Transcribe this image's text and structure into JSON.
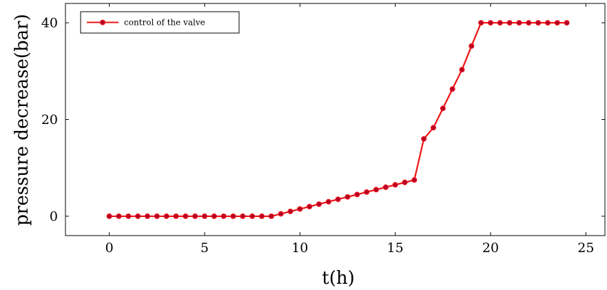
{
  "chart_data": {
    "type": "line",
    "title": "",
    "xlabel": "t(h)",
    "ylabel": "pressure decrease(bar)",
    "xlim": [
      -2.3,
      26.0
    ],
    "ylim": [
      -4.0,
      44.0
    ],
    "x_ticks": [
      0,
      5,
      10,
      15,
      20,
      25
    ],
    "y_ticks": [
      0,
      20,
      40
    ],
    "grid": false,
    "legend_position": "top-left",
    "colors": {
      "line": "#ee1111",
      "marker": "#b3002e"
    },
    "series": [
      {
        "name": "control of the valve",
        "x": [
          0,
          0.5,
          1,
          1.5,
          2,
          2.5,
          3,
          3.5,
          4,
          4.5,
          5,
          5.5,
          6,
          6.5,
          7,
          7.5,
          8,
          8.5,
          9,
          9.5,
          10,
          10.5,
          11,
          11.5,
          12,
          12.5,
          13,
          13.5,
          14,
          14.5,
          15,
          15.5,
          16,
          16.5,
          17,
          17.5,
          18,
          18.5,
          19,
          19.5,
          20,
          20.5,
          21,
          21.5,
          22,
          22.5,
          23,
          23.5,
          24
        ],
        "y": [
          0,
          0,
          0,
          0,
          0,
          0,
          0,
          0,
          0,
          0,
          0,
          0,
          0,
          0,
          0,
          0,
          0,
          0,
          0.5,
          1.0,
          1.5,
          2.0,
          2.5,
          3.0,
          3.5,
          4.0,
          4.5,
          5.0,
          5.5,
          6.0,
          6.5,
          7.0,
          7.5,
          16.0,
          18.3,
          22.3,
          26.3,
          30.3,
          35.2,
          40,
          40,
          40,
          40,
          40,
          40,
          40,
          40,
          40,
          40
        ]
      }
    ]
  }
}
